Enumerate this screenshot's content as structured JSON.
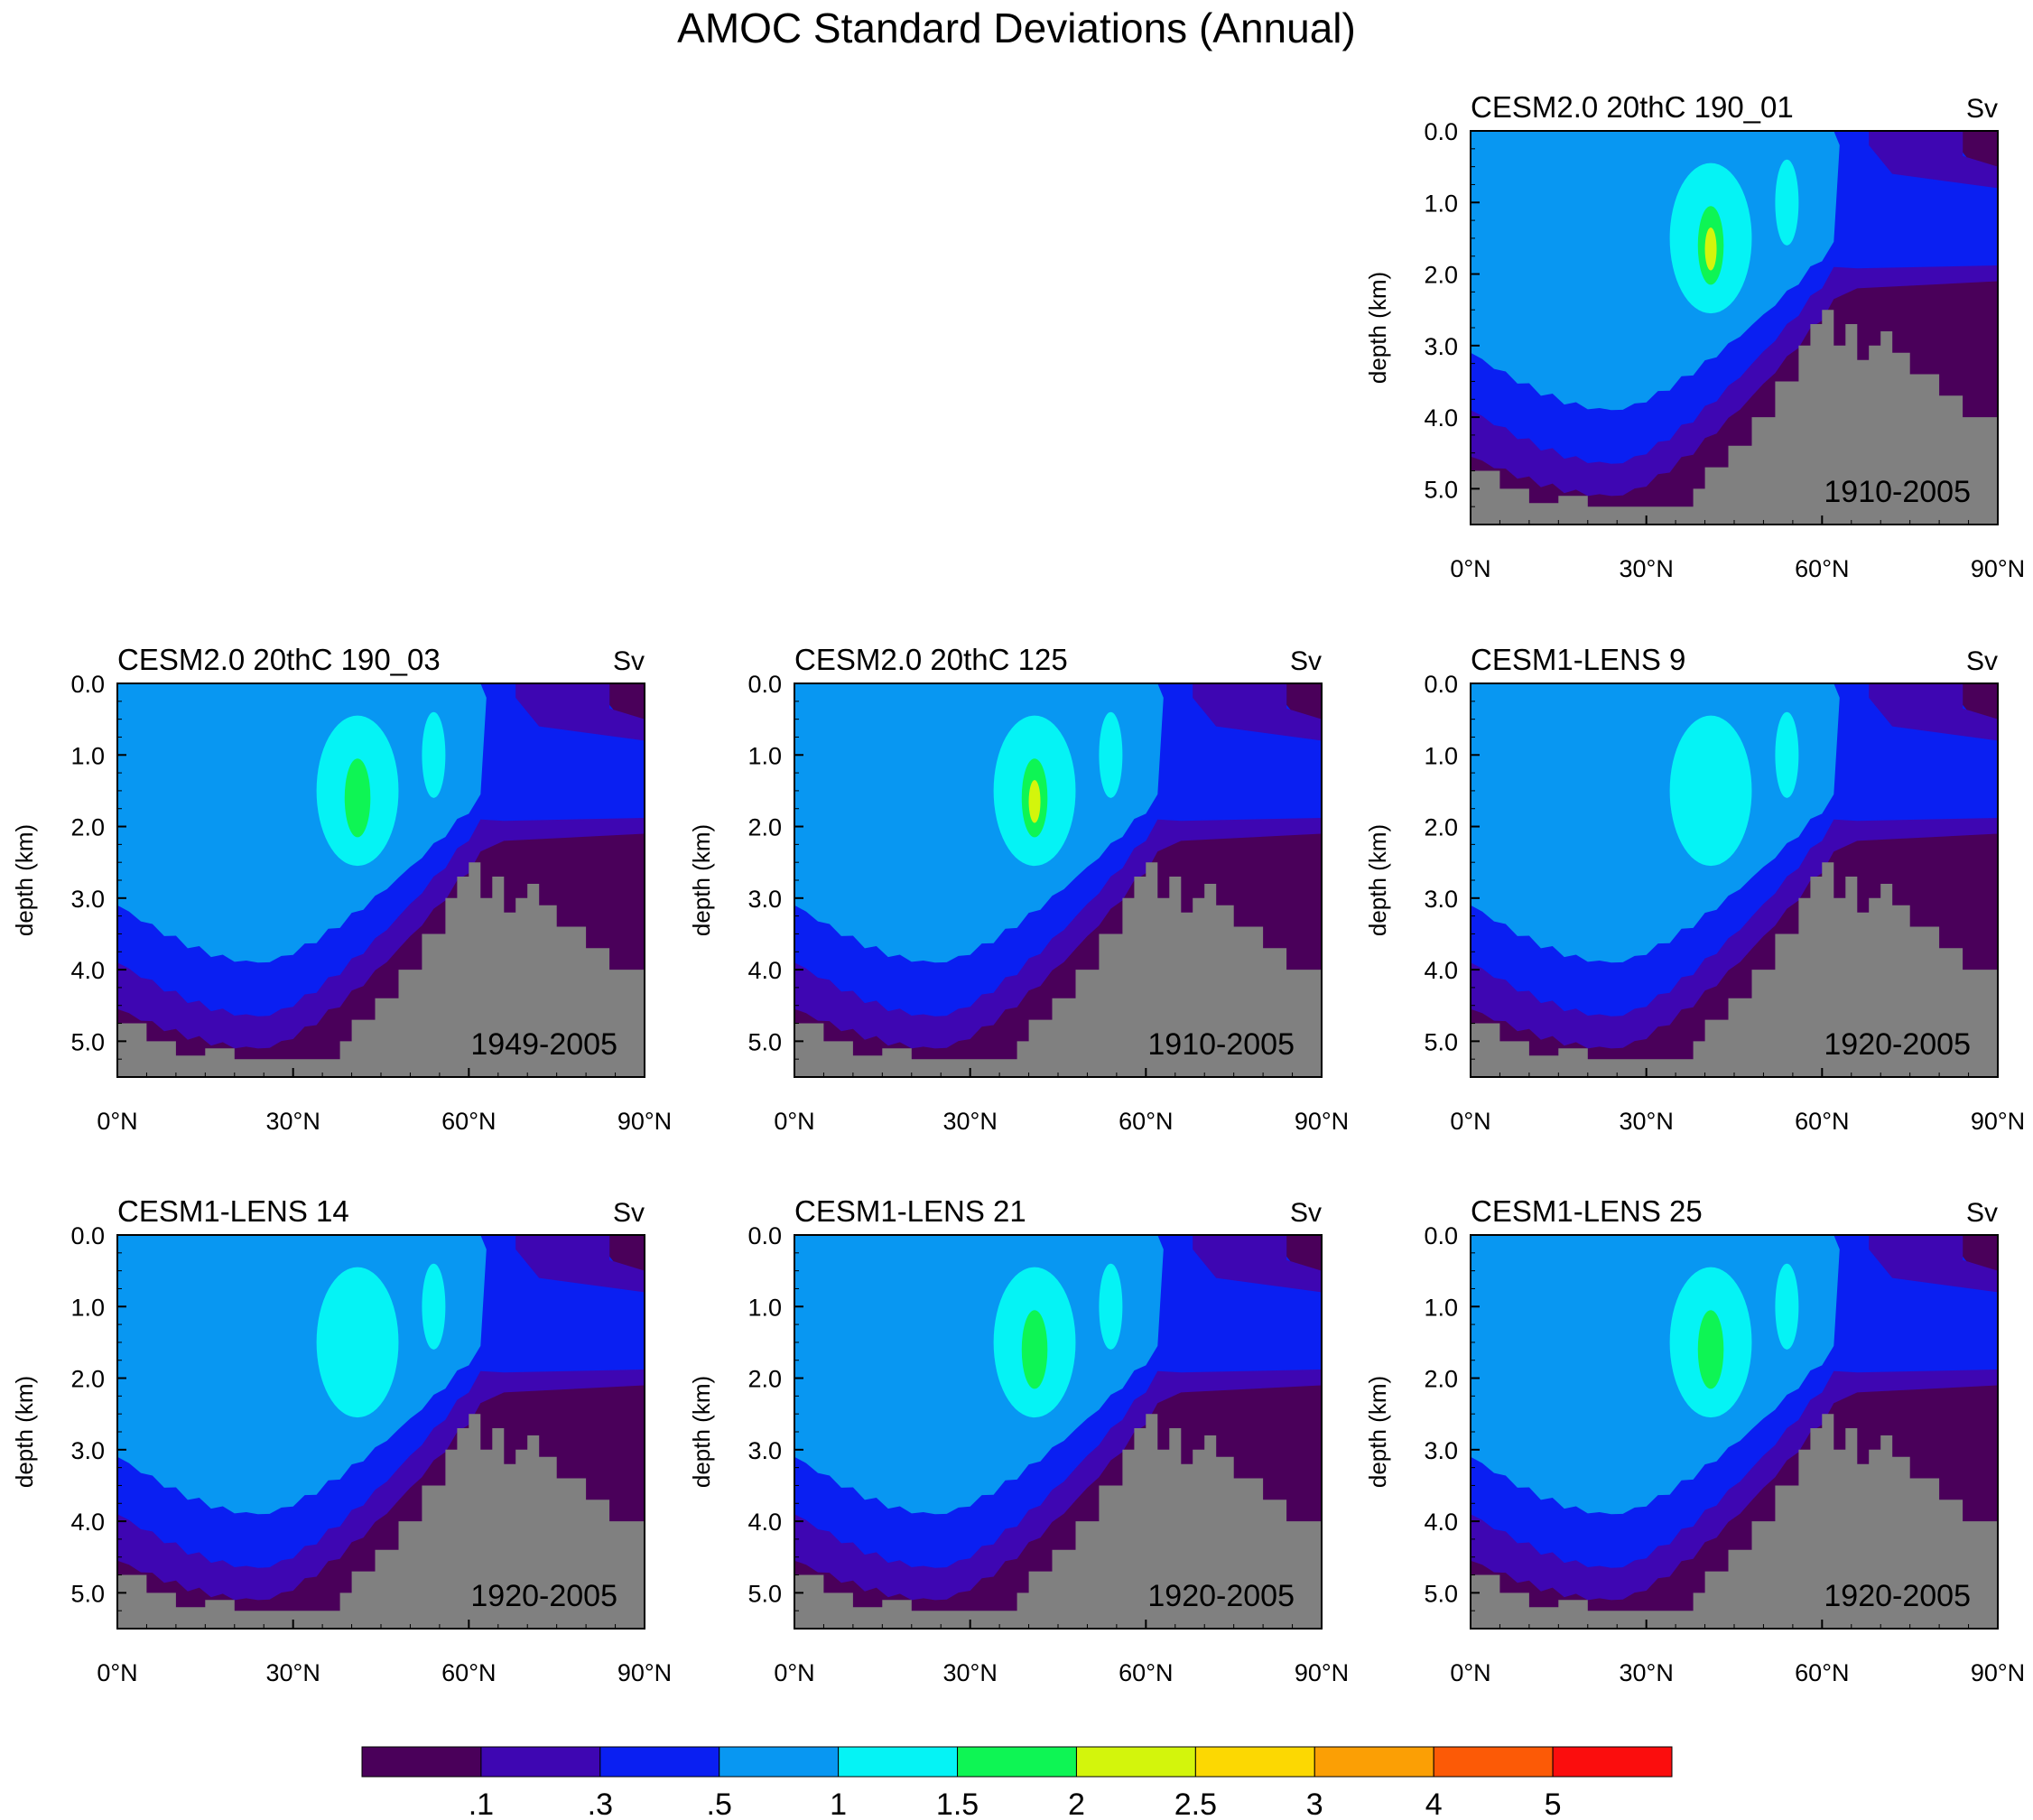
{
  "figure": {
    "title": "AMOC Standard Deviations (Annual)",
    "colorbar": {
      "colors": [
        "#4a005a",
        "#3e06b2",
        "#0a1ff2",
        "#0897f2",
        "#05f3f5",
        "#0ef554",
        "#d3f50c",
        "#fcd802",
        "#fb9f05",
        "#fc5a06",
        "#fb0d0d"
      ],
      "levels": [
        ".1",
        ".3",
        ".5",
        "1",
        "1.5",
        "2",
        "2.5",
        "3",
        "4",
        "5"
      ]
    }
  },
  "chart_data": [
    {
      "type": "heatmap",
      "title": "CESM2.0 20thC 190_01",
      "units": "Sv",
      "period": "1910-2005",
      "xlabel": "",
      "ylabel": "depth (km)",
      "xticks": [
        "0°N",
        "30°N",
        "60°N",
        "90°N"
      ],
      "yticks": [
        "0.0",
        "1.0",
        "2.0",
        "3.0",
        "4.0",
        "5.0"
      ],
      "xlim": [
        0,
        90
      ],
      "ylim": [
        0,
        5.5
      ],
      "core_max_sv": 2.5
    },
    {
      "type": "heatmap",
      "title": "CESM2.0 20thC 190_03",
      "units": "Sv",
      "period": "1949-2005",
      "xlabel": "",
      "ylabel": "depth (km)",
      "xticks": [
        "0°N",
        "30°N",
        "60°N",
        "90°N"
      ],
      "yticks": [
        "0.0",
        "1.0",
        "2.0",
        "3.0",
        "4.0",
        "5.0"
      ],
      "xlim": [
        0,
        90
      ],
      "ylim": [
        0,
        5.5
      ],
      "core_max_sv": 2.0
    },
    {
      "type": "heatmap",
      "title": "CESM2.0 20thC 125",
      "units": "Sv",
      "period": "1910-2005",
      "xlabel": "",
      "ylabel": "depth (km)",
      "xticks": [
        "0°N",
        "30°N",
        "60°N",
        "90°N"
      ],
      "yticks": [
        "0.0",
        "1.0",
        "2.0",
        "3.0",
        "4.0",
        "5.0"
      ],
      "xlim": [
        0,
        90
      ],
      "ylim": [
        0,
        5.5
      ],
      "core_max_sv": 2.5
    },
    {
      "type": "heatmap",
      "title": "CESM1-LENS 9",
      "units": "Sv",
      "period": "1920-2005",
      "xlabel": "",
      "ylabel": "depth (km)",
      "xticks": [
        "0°N",
        "30°N",
        "60°N",
        "90°N"
      ],
      "yticks": [
        "0.0",
        "1.0",
        "2.0",
        "3.0",
        "4.0",
        "5.0"
      ],
      "xlim": [
        0,
        90
      ],
      "ylim": [
        0,
        5.5
      ],
      "core_max_sv": 1.5
    },
    {
      "type": "heatmap",
      "title": "CESM1-LENS 14",
      "units": "Sv",
      "period": "1920-2005",
      "xlabel": "",
      "ylabel": "depth (km)",
      "xticks": [
        "0°N",
        "30°N",
        "60°N",
        "90°N"
      ],
      "yticks": [
        "0.0",
        "1.0",
        "2.0",
        "3.0",
        "4.0",
        "5.0"
      ],
      "xlim": [
        0,
        90
      ],
      "ylim": [
        0,
        5.5
      ],
      "core_max_sv": 1.5
    },
    {
      "type": "heatmap",
      "title": "CESM1-LENS 21",
      "units": "Sv",
      "period": "1920-2005",
      "xlabel": "",
      "ylabel": "depth (km)",
      "xticks": [
        "0°N",
        "30°N",
        "60°N",
        "90°N"
      ],
      "yticks": [
        "0.0",
        "1.0",
        "2.0",
        "3.0",
        "4.0",
        "5.0"
      ],
      "xlim": [
        0,
        90
      ],
      "ylim": [
        0,
        5.5
      ],
      "core_max_sv": 2.0
    },
    {
      "type": "heatmap",
      "title": "CESM1-LENS 25",
      "units": "Sv",
      "period": "1920-2005",
      "xlabel": "",
      "ylabel": "depth (km)",
      "xticks": [
        "0°N",
        "30°N",
        "60°N",
        "90°N"
      ],
      "yticks": [
        "0.0",
        "1.0",
        "2.0",
        "3.0",
        "4.0",
        "5.0"
      ],
      "xlim": [
        0,
        90
      ],
      "ylim": [
        0,
        5.5
      ],
      "core_max_sv": 2.0
    }
  ]
}
